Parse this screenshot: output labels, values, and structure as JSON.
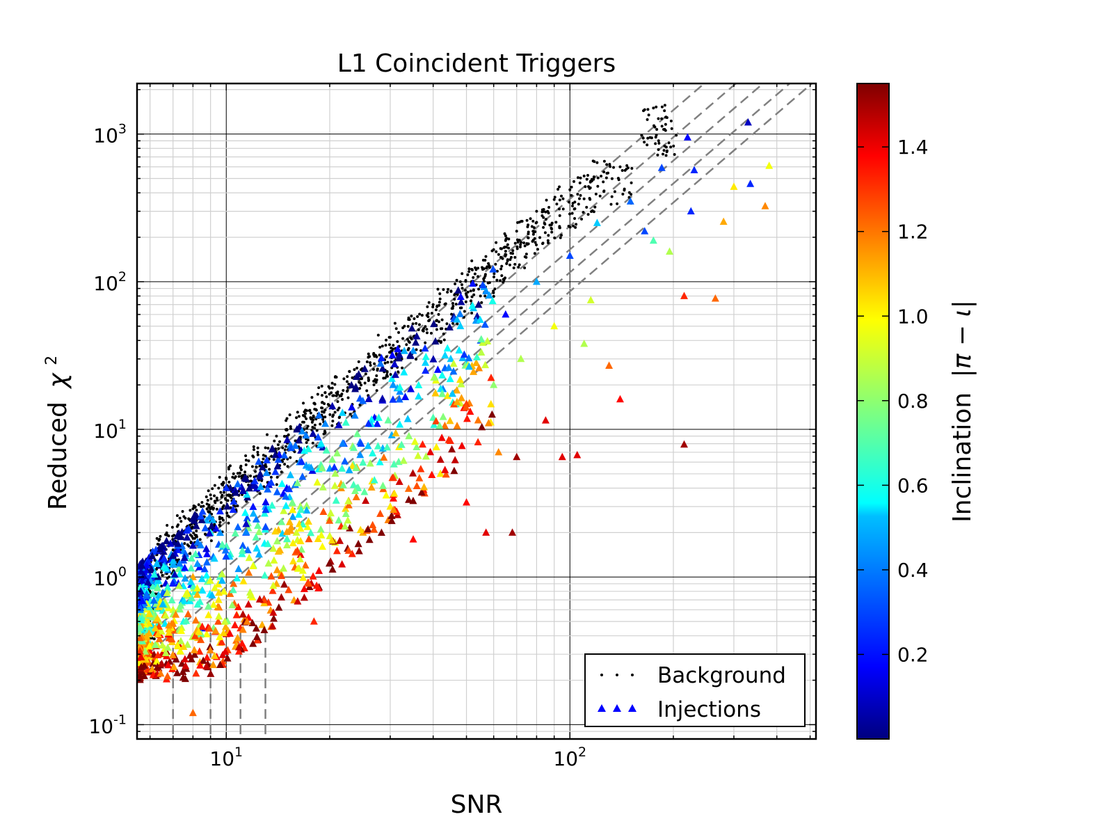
{
  "chart_data": {
    "type": "scatter",
    "title": "L1 Coincident Triggers",
    "xlabel": "SNR",
    "ylabel_text": "Reduced",
    "ylabel_math": "χ",
    "ylabel_sup": "2",
    "xscale": "log",
    "yscale": "log",
    "xlim": [
      5.5,
      520
    ],
    "ylim": [
      0.08,
      2200
    ],
    "x_ticks": [
      {
        "value": 10,
        "base": "10",
        "exp": "1"
      },
      {
        "value": 100,
        "base": "10",
        "exp": "2"
      }
    ],
    "y_ticks": [
      {
        "value": 0.1,
        "base": "10",
        "exp": "-1"
      },
      {
        "value": 1,
        "base": "10",
        "exp": "0"
      },
      {
        "value": 10,
        "base": "10",
        "exp": "1"
      },
      {
        "value": 100,
        "base": "10",
        "exp": "2"
      },
      {
        "value": 1000,
        "base": "10",
        "exp": "3"
      }
    ],
    "grid": true,
    "legend": {
      "position": "bottom-right",
      "entries": [
        {
          "label": "Background",
          "marker": "dot",
          "color": "#000000"
        },
        {
          "label": "Injections",
          "marker": "triangle",
          "color": "#0000ff"
        }
      ]
    },
    "colorbar": {
      "label_text": "Inclination",
      "label_math": "|π − ι|",
      "range": [
        0.0,
        1.55
      ],
      "ticks": [
        0.2,
        0.4,
        0.6,
        0.8,
        1.0,
        1.2,
        1.4
      ],
      "tick_labels": [
        "0.2",
        "0.4",
        "0.6",
        "0.8",
        "1.0",
        "1.2",
        "1.4"
      ],
      "colormap": "jet"
    },
    "reference_lines": {
      "style": "dashed",
      "color": "#808080",
      "diagonal_y_at_snr5_5": [
        1.1,
        0.72,
        0.5,
        0.35,
        0.26
      ],
      "slope_loglog": 2,
      "vertical_snr": [
        7.0,
        9.0,
        11.0,
        13.0
      ]
    },
    "series": [
      {
        "name": "Background",
        "marker": "dot",
        "color": "#000000",
        "summary": "dense band along chi2 ≈ 0.045·SNR^2 from SNR 5.6 to ~200",
        "points": [
          [
            5.6,
            0.38
          ],
          [
            5.7,
            0.5
          ],
          [
            5.8,
            0.7
          ],
          [
            5.9,
            0.9
          ],
          [
            6.0,
            1.1
          ],
          [
            6.2,
            1.3
          ],
          [
            6.5,
            1.6
          ],
          [
            6.8,
            1.9
          ],
          [
            7.2,
            2.2
          ],
          [
            7.6,
            2.5
          ],
          [
            8.0,
            2.9
          ],
          [
            8.5,
            3.2
          ],
          [
            9.0,
            3.6
          ],
          [
            9.5,
            4.0
          ],
          [
            10.0,
            4.6
          ],
          [
            10.5,
            5.0
          ],
          [
            11.0,
            5.5
          ],
          [
            12.0,
            6.5
          ],
          [
            13.0,
            7.5
          ],
          [
            14.0,
            9.0
          ],
          [
            15.0,
            10.0
          ],
          [
            16.0,
            12.0
          ],
          [
            17.0,
            13.5
          ],
          [
            18.0,
            15.0
          ],
          [
            19.0,
            17.0
          ],
          [
            20.0,
            19.0
          ],
          [
            22.0,
            22.0
          ],
          [
            24.0,
            26.0
          ],
          [
            26.0,
            31.0
          ],
          [
            28.0,
            36.0
          ],
          [
            30.0,
            42.0
          ],
          [
            33.0,
            50.0
          ],
          [
            36.0,
            58.0
          ],
          [
            40.0,
            70.0
          ],
          [
            44.0,
            85.0
          ],
          [
            48.0,
            100.0
          ],
          [
            52.0,
            120.0
          ],
          [
            56.0,
            140.0
          ],
          [
            60.0,
            165.0
          ],
          [
            65.0,
            190.0
          ],
          [
            70.0,
            220.0
          ],
          [
            75.0,
            260.0
          ],
          [
            80.0,
            300.0
          ],
          [
            90.0,
            360.0
          ],
          [
            100.0,
            420.0
          ],
          [
            110.0,
            520.0
          ],
          [
            120.0,
            640.0
          ],
          [
            140.0,
            600.0
          ],
          [
            175.0,
            1500.0
          ],
          [
            190.0,
            1300.0
          ]
        ]
      },
      {
        "name": "Injections",
        "marker": "triangle",
        "color_by": "inclination",
        "summary": "cloud of triangles below background band, SNR 5.6 to ~380",
        "points": [
          [
            5.8,
            0.24,
            0.05
          ],
          [
            6.0,
            0.35,
            0.6
          ],
          [
            6.2,
            0.9,
            0.3
          ],
          [
            6.5,
            1.2,
            0.5
          ],
          [
            7.0,
            0.6,
            0.9
          ],
          [
            7.5,
            1.5,
            0.4
          ],
          [
            8.0,
            0.12,
            1.2
          ],
          [
            8.0,
            1.0,
            1.1
          ],
          [
            8.5,
            0.45,
            0.2
          ],
          [
            9.0,
            2.0,
            0.6
          ],
          [
            9.5,
            0.7,
            1.0
          ],
          [
            10.0,
            1.6,
            0.15
          ],
          [
            10.5,
            0.9,
            1.2
          ],
          [
            11.0,
            0.45,
            1.3
          ],
          [
            11.5,
            2.5,
            0.3
          ],
          [
            12.0,
            1.2,
            0.8
          ],
          [
            13.0,
            3.0,
            0.45
          ],
          [
            14.0,
            0.9,
            1.1
          ],
          [
            15.0,
            4.0,
            0.2
          ],
          [
            16.0,
            2.0,
            0.9
          ],
          [
            17.0,
            1.2,
            1.2
          ],
          [
            18.0,
            0.5,
            1.3
          ],
          [
            19.0,
            5.5,
            0.5
          ],
          [
            20.0,
            2.5,
            0.85
          ],
          [
            21.0,
            1.5,
            1.3
          ],
          [
            22.0,
            8.0,
            0.3
          ],
          [
            24.0,
            4.0,
            0.7
          ],
          [
            25.0,
            2.0,
            1.1
          ],
          [
            27.0,
            12.0,
            0.2
          ],
          [
            28.0,
            6.0,
            0.6
          ],
          [
            30.0,
            3.0,
            1.0
          ],
          [
            32.0,
            18.0,
            0.4
          ],
          [
            34.0,
            9.0,
            0.8
          ],
          [
            35.0,
            1.8,
            1.35
          ],
          [
            38.0,
            25.0,
            0.25
          ],
          [
            40.0,
            12.0,
            0.7
          ],
          [
            42.0,
            5.0,
            1.0
          ],
          [
            45.0,
            30.0,
            0.5
          ],
          [
            48.0,
            15.0,
            0.9
          ],
          [
            50.0,
            3.2,
            1.35
          ],
          [
            55.0,
            40.0,
            0.3
          ],
          [
            57.0,
            2.0,
            1.4
          ],
          [
            60.0,
            20.0,
            0.8
          ],
          [
            62.0,
            7.0,
            1.15
          ],
          [
            65.0,
            60.0,
            0.2
          ],
          [
            68.0,
            2.0,
            1.5
          ],
          [
            70.0,
            6.5,
            1.5
          ],
          [
            72.0,
            30.0,
            0.85
          ],
          [
            80.0,
            100.0,
            0.45
          ],
          [
            85.0,
            11.5,
            1.4
          ],
          [
            90.0,
            50.0,
            0.95
          ],
          [
            95.0,
            6.5,
            1.4
          ],
          [
            100.0,
            150.0,
            0.3
          ],
          [
            105.0,
            6.7,
            1.4
          ],
          [
            110.0,
            38.0,
            0.85
          ],
          [
            115.0,
            75.0,
            0.9
          ],
          [
            120.0,
            250.0,
            0.5
          ],
          [
            130.0,
            27.0,
            1.2
          ],
          [
            140.0,
            16.0,
            1.35
          ],
          [
            150.0,
            350.0,
            0.35
          ],
          [
            165.0,
            220.0,
            0.3
          ],
          [
            175.0,
            190.0,
            0.7
          ],
          [
            185.0,
            590.0,
            0.3
          ],
          [
            195.0,
            160.0,
            0.85
          ],
          [
            215.0,
            80.0,
            1.3
          ],
          [
            215.0,
            7.9,
            1.5
          ],
          [
            220.0,
            950.0,
            0.2
          ],
          [
            225.0,
            300.0,
            0.25
          ],
          [
            230.0,
            570.0,
            0.25
          ],
          [
            265.0,
            77.0,
            1.2
          ],
          [
            280.0,
            255.0,
            1.1
          ],
          [
            300.0,
            440.0,
            1.0
          ],
          [
            330.0,
            1200.0,
            0.1
          ],
          [
            335.0,
            460.0,
            0.25
          ],
          [
            370.0,
            325.0,
            1.15
          ],
          [
            380.0,
            610.0,
            0.95
          ]
        ]
      }
    ]
  }
}
